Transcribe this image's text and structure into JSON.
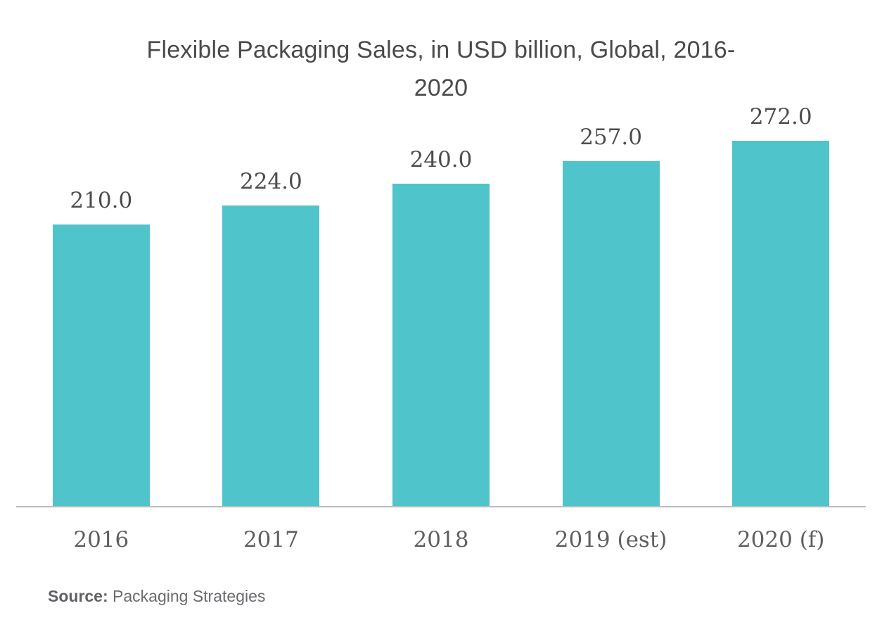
{
  "chart_data": {
    "type": "bar",
    "title": "Flexible Packaging Sales, in USD billion, Global, 2016-2020",
    "title_lines": [
      "Flexible Packaging Sales, in USD billion, Global, 2016-",
      "2020"
    ],
    "categories": [
      "2016",
      "2017",
      "2018",
      "2019 (est)",
      "2020 (f)"
    ],
    "values": [
      210.0,
      224.0,
      240.0,
      257.0,
      272.0
    ],
    "value_labels": [
      "210.0",
      "224.0",
      "240.0",
      "257.0",
      "272.0"
    ],
    "xlabel": "",
    "ylabel": "",
    "ylim": [
      0,
      285
    ],
    "grid": false,
    "legend_position": "none",
    "bar_color": "#4FC4CB",
    "axis_line_color": "#BBBCBD",
    "label_color": "#4B4C4E",
    "tick_label_color": "#5E5F61",
    "title_color": "#4A4A4C"
  },
  "source": {
    "label": "Source:",
    "text": " Packaging Strategies"
  }
}
